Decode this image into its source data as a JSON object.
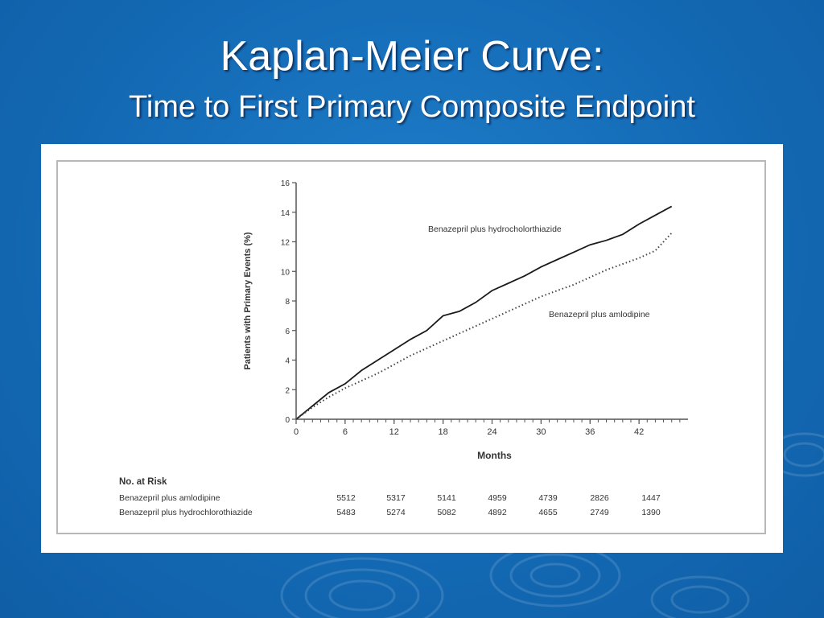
{
  "slide": {
    "title": "Kaplan-Meier Curve:",
    "subtitle": "Time to First Primary Composite Endpoint"
  },
  "colors": {
    "background": "#146ab5",
    "text": "#ffffff",
    "panel": "#ffffff"
  },
  "chart_data": {
    "type": "line",
    "title": "",
    "xlabel": "Months",
    "ylabel": "Patients with Primary Events (%)",
    "xlim": [
      0,
      48
    ],
    "ylim": [
      0,
      16
    ],
    "x_ticks": [
      0,
      6,
      12,
      18,
      24,
      30,
      36,
      42
    ],
    "y_ticks": [
      0,
      2,
      4,
      6,
      8,
      10,
      12,
      14,
      16
    ],
    "series": [
      {
        "name": "Benazepril plus hydrocholorthiazide",
        "style": "solid",
        "color": "#1a1a1a",
        "x": [
          0,
          2,
          4,
          6,
          8,
          10,
          12,
          14,
          16,
          18,
          20,
          22,
          24,
          26,
          28,
          30,
          32,
          34,
          36,
          38,
          40,
          42,
          44,
          46
        ],
        "y": [
          0,
          0.9,
          1.8,
          2.4,
          3.3,
          4.0,
          4.7,
          5.4,
          6.0,
          7.0,
          7.3,
          7.9,
          8.7,
          9.2,
          9.7,
          10.3,
          10.8,
          11.3,
          11.8,
          12.1,
          12.5,
          13.2,
          13.8,
          14.4
        ]
      },
      {
        "name": "Benazepril plus amlodipine",
        "style": "dotted",
        "color": "#444444",
        "x": [
          0,
          2,
          4,
          6,
          8,
          10,
          12,
          14,
          16,
          18,
          20,
          22,
          24,
          26,
          28,
          30,
          32,
          34,
          36,
          38,
          40,
          42,
          44,
          46
        ],
        "y": [
          0,
          0.8,
          1.5,
          2.1,
          2.6,
          3.1,
          3.7,
          4.3,
          4.8,
          5.3,
          5.8,
          6.3,
          6.8,
          7.3,
          7.8,
          8.3,
          8.7,
          9.1,
          9.6,
          10.1,
          10.5,
          10.9,
          11.4,
          12.6
        ]
      }
    ],
    "risk_table": {
      "header": "No. at Risk",
      "rows": [
        {
          "label": "Benazepril plus amlodipine",
          "values": [
            "5512",
            "5317",
            "5141",
            "4959",
            "4739",
            "2826",
            "1447"
          ]
        },
        {
          "label": "Benazepril plus hydrochlorothiazide",
          "values": [
            "5483",
            "5274",
            "5082",
            "4892",
            "4655",
            "2749",
            "1390"
          ]
        }
      ]
    }
  }
}
